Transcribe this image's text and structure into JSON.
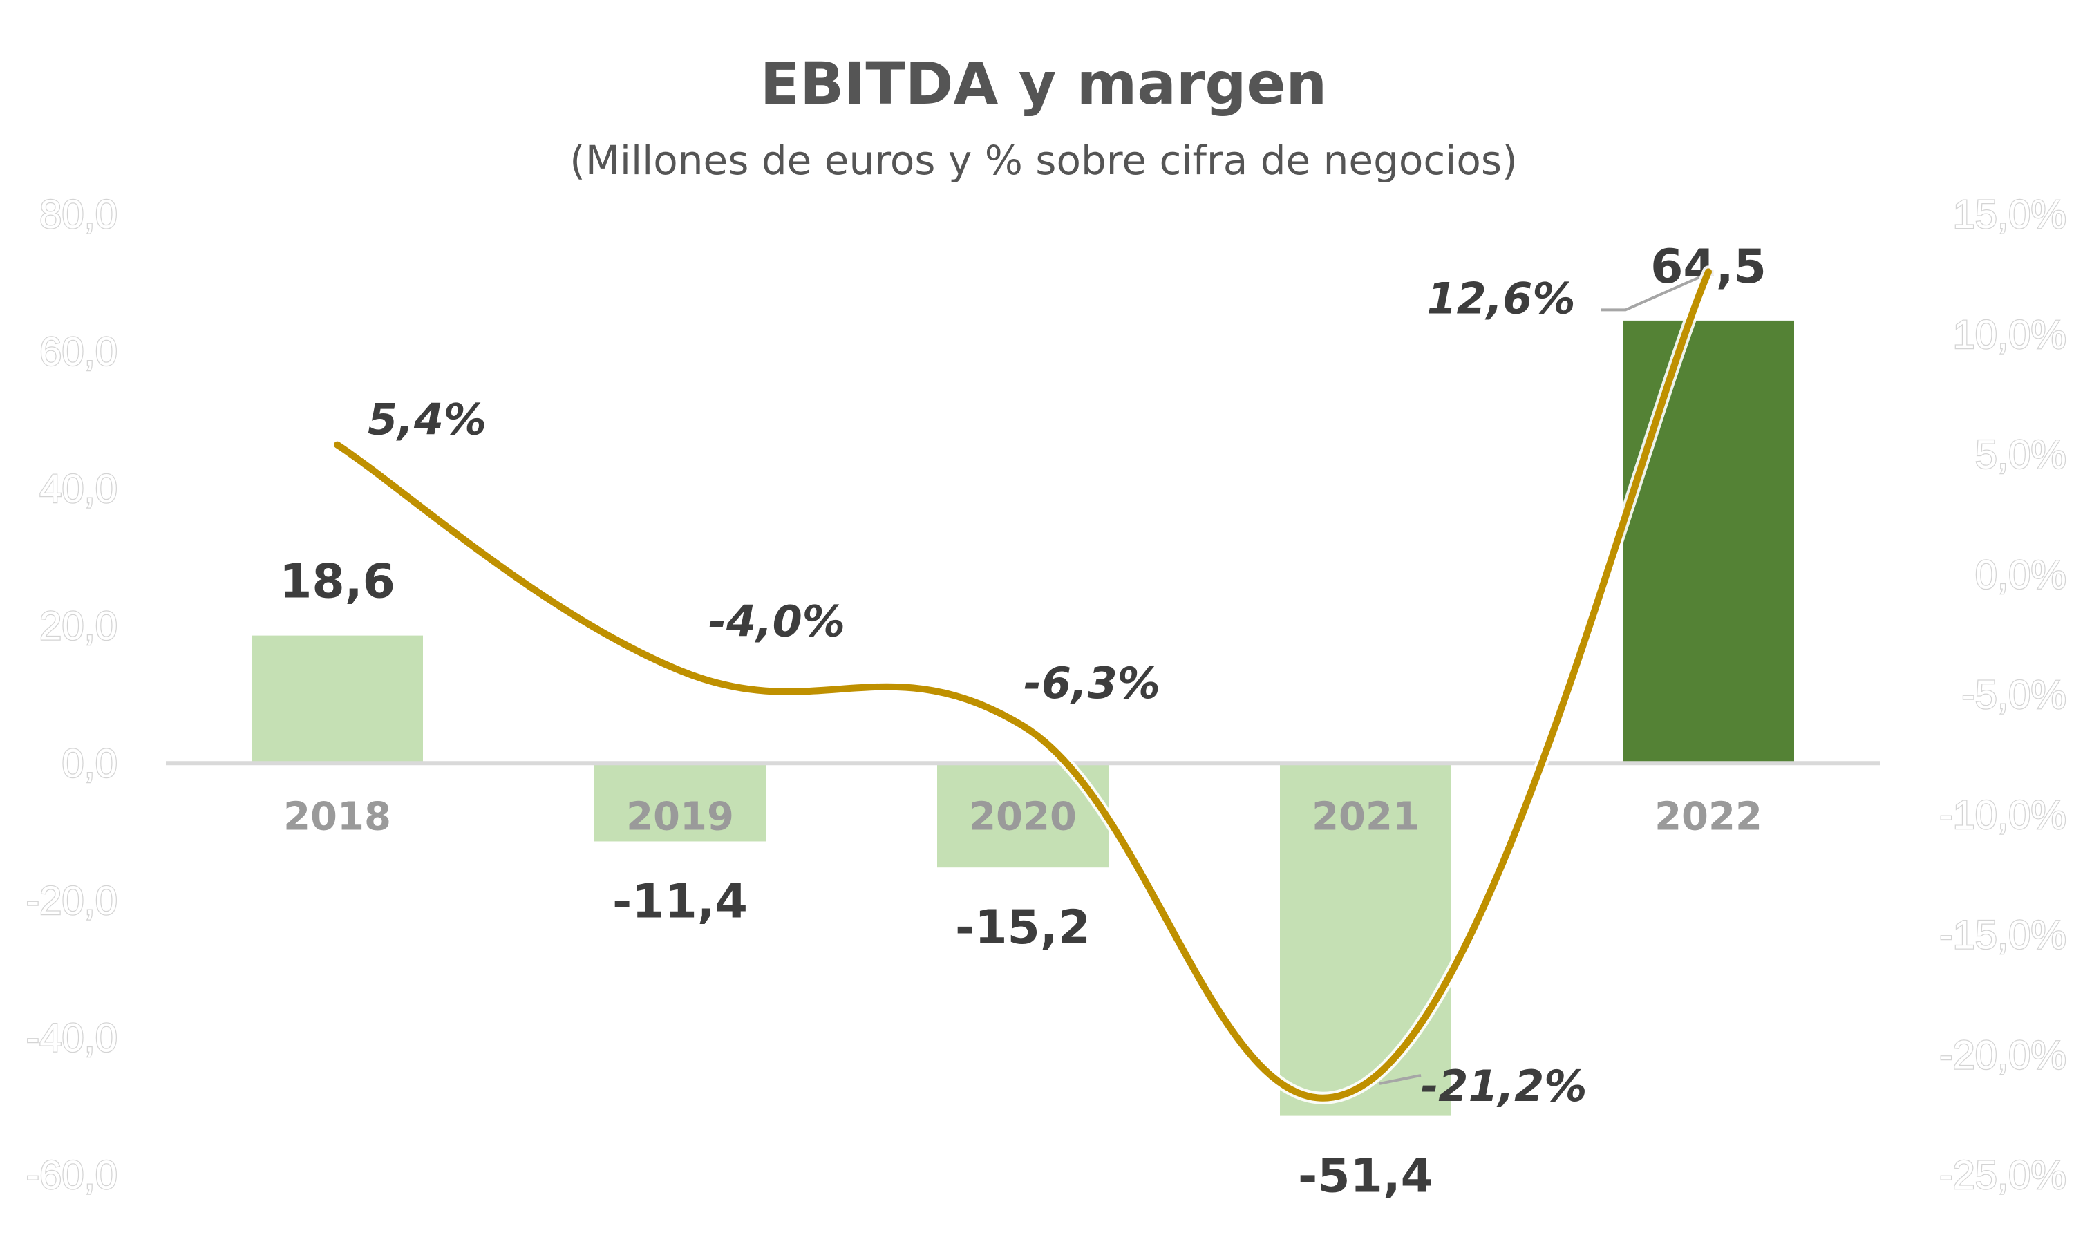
{
  "chart_data": {
    "type": "bar",
    "title": "EBITDA y margen",
    "subtitle": "(Millones de euros y % sobre cifra de negocios)",
    "categories": [
      "2018",
      "2019",
      "2020",
      "2021",
      "2022"
    ],
    "series": [
      {
        "type": "bar",
        "axis": "left",
        "values": [
          18.6,
          -11.4,
          -15.2,
          -51.4,
          64.5
        ],
        "labels": [
          "18,6",
          "-11,4",
          "-15,2",
          "-51,4",
          "64,5"
        ],
        "colors": [
          "#c5e0b4",
          "#c5e0b4",
          "#c5e0b4",
          "#c5e0b4",
          "#548235"
        ]
      },
      {
        "type": "line",
        "axis": "right",
        "smooth": true,
        "values": [
          5.4,
          -4.0,
          -6.3,
          -21.2,
          12.6
        ],
        "labels": [
          "5,4%",
          "-4,0%",
          "-6,3%",
          "-21,2%",
          "12,6%"
        ],
        "color": "#bf9000"
      }
    ],
    "y_left": {
      "ylim": [
        -60,
        80
      ],
      "ticks": [
        80,
        60,
        40,
        20,
        0,
        -20,
        -40,
        -60
      ],
      "tick_labels": [
        "80,0",
        "60,0",
        "40,0",
        "20,0",
        "0,0",
        "-20,0",
        "-40,0",
        "-60,0"
      ]
    },
    "y_right": {
      "ylim": [
        -25,
        15
      ],
      "ticks": [
        15,
        10,
        5,
        0,
        -5,
        -10,
        -15,
        -20,
        -25
      ],
      "tick_labels": [
        "15,0%",
        "10,0%",
        "5,0%",
        "0,0%",
        "-5,0%",
        "-10,0%",
        "-15,0%",
        "-20,0%",
        "-25,0%"
      ]
    },
    "grid": false,
    "legend": "none"
  }
}
